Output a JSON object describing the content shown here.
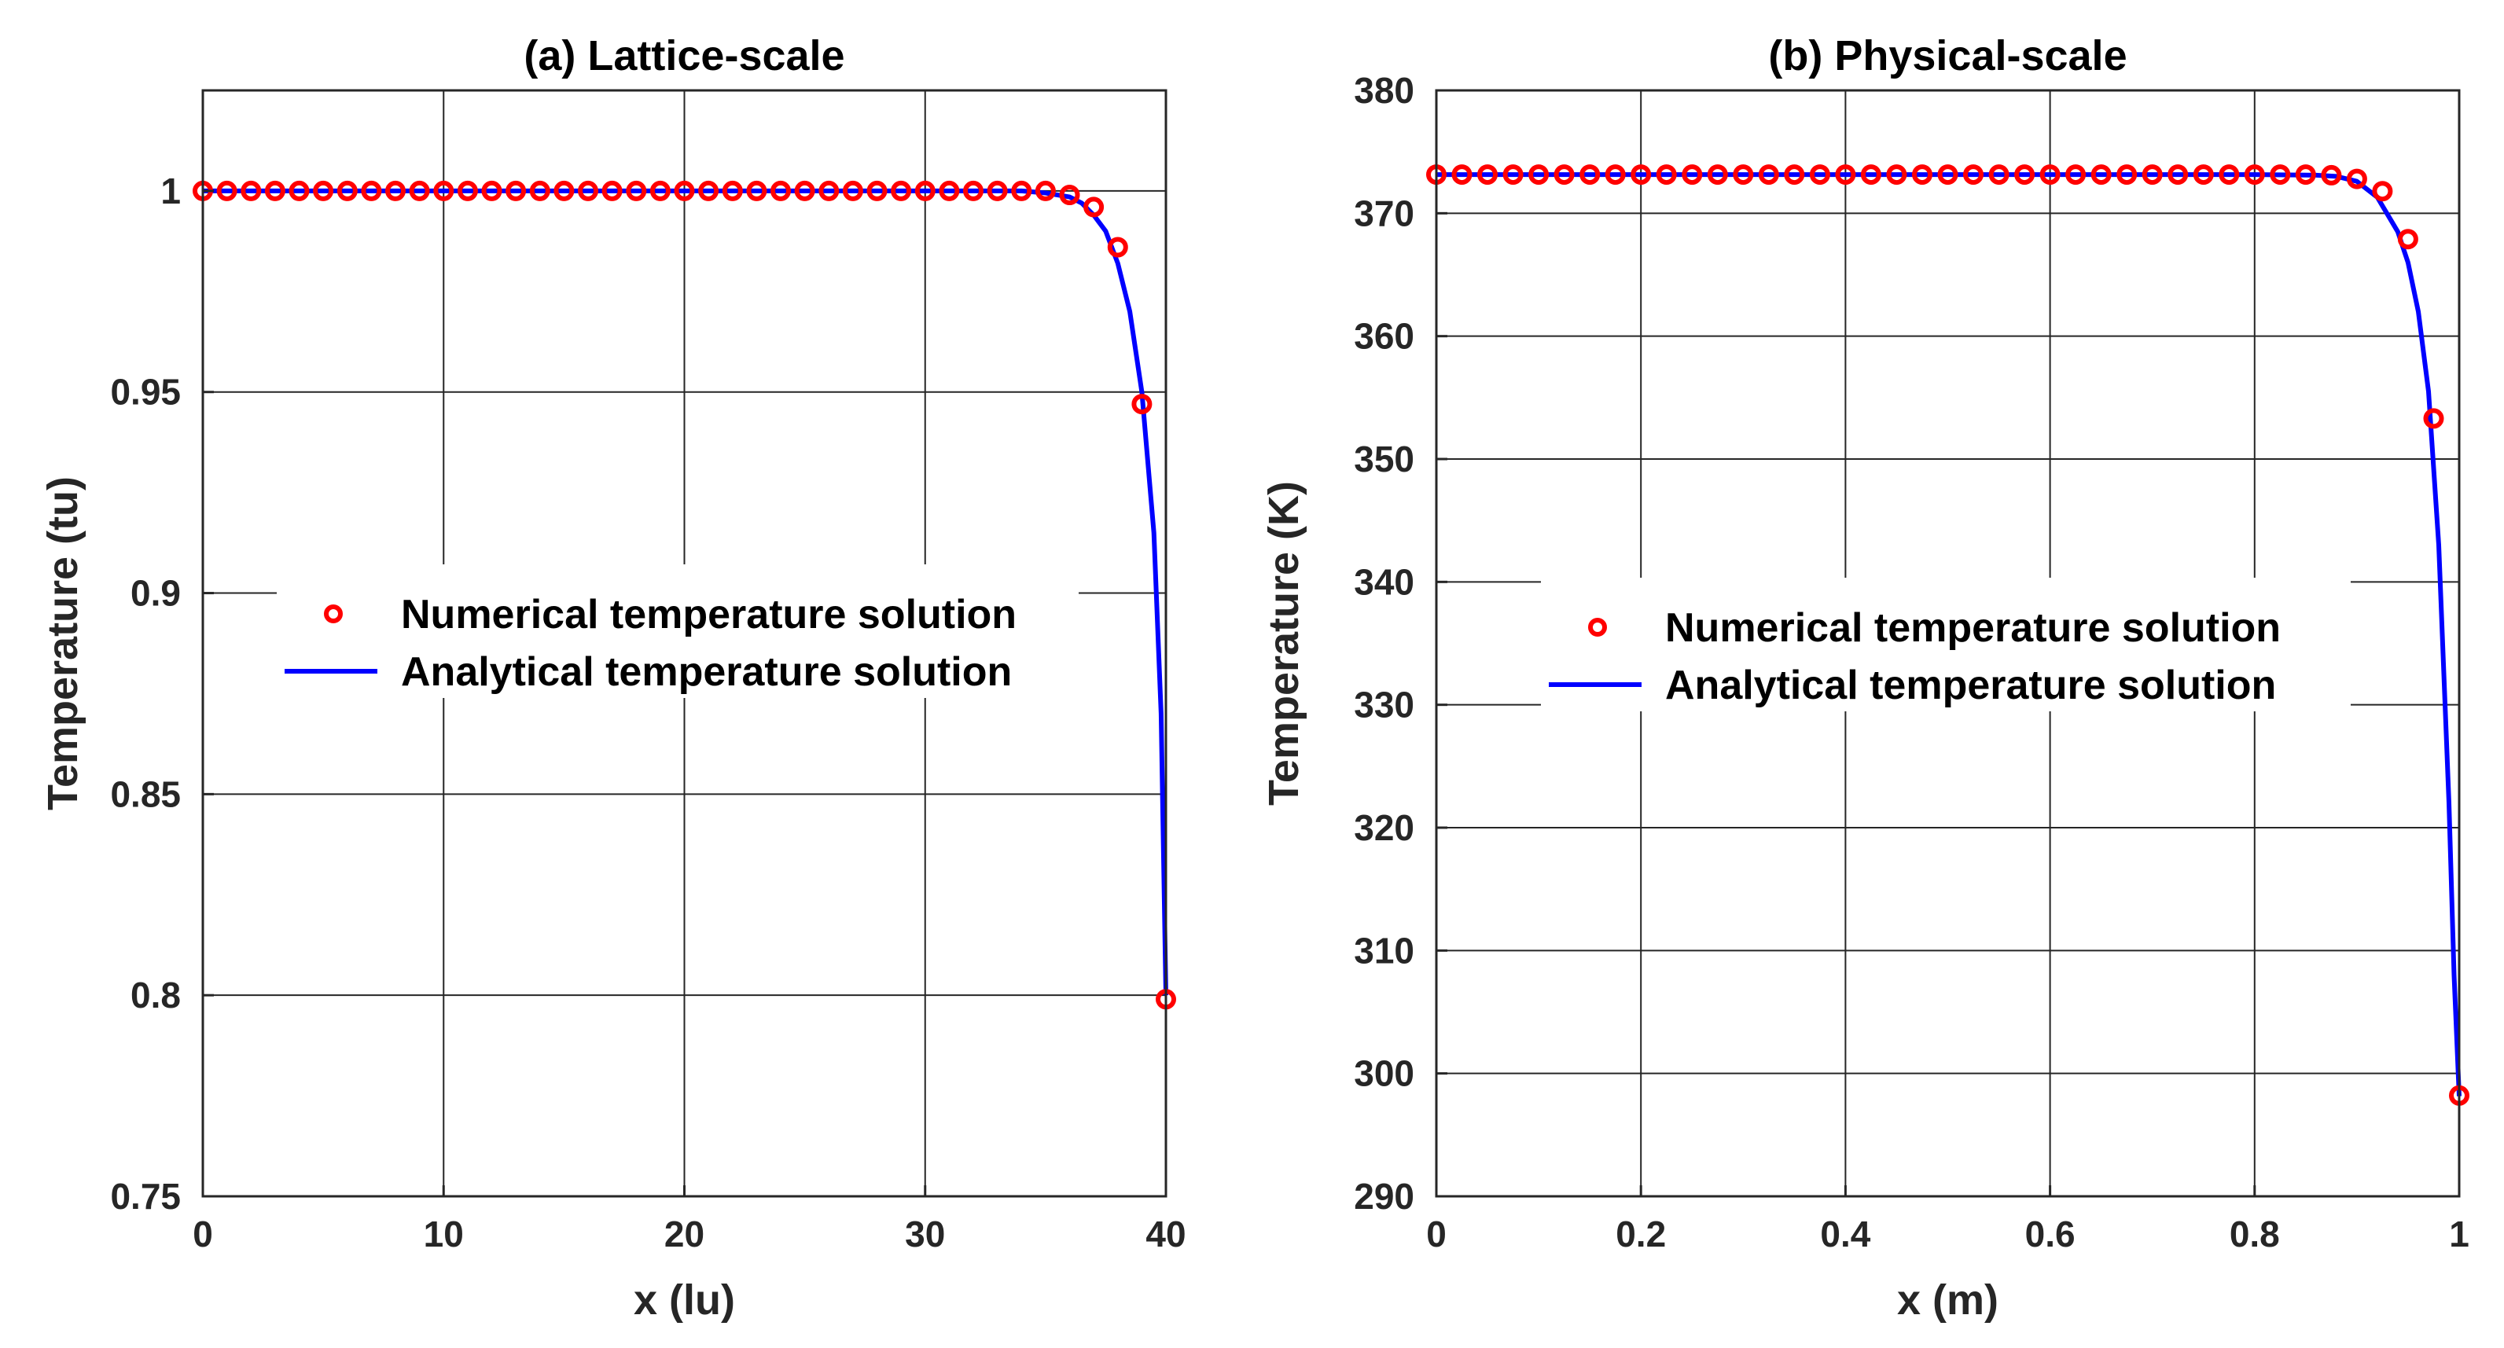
{
  "chart_data": [
    {
      "type": "line",
      "title": "(a) Lattice-scale",
      "xlabel": "x (lu)",
      "ylabel": "Temperature (tu)",
      "xlim": [
        0,
        40
      ],
      "ylim": [
        0.75,
        1.025
      ],
      "xticks": [
        0,
        10,
        20,
        30,
        40
      ],
      "xtick_labels": [
        "0",
        "10",
        "20",
        "30",
        "40"
      ],
      "yticks": [
        0.75,
        0.8,
        0.85,
        0.9,
        0.95,
        1.0
      ],
      "ytick_labels": [
        "0.75",
        "0.8",
        "0.85",
        "0.9",
        "0.95",
        "1"
      ],
      "grid": true,
      "legend": {
        "entries": [
          "Numerical temperature solution",
          "Analytical temperature solution"
        ],
        "location": "center-right"
      },
      "series": [
        {
          "name": "Numerical temperature solution",
          "marker": "circle",
          "color": "#ff0000",
          "x": [
            0,
            1,
            2,
            3,
            4,
            5,
            6,
            7,
            8,
            9,
            10,
            11,
            12,
            13,
            14,
            15,
            16,
            17,
            18,
            19,
            20,
            21,
            22,
            23,
            24,
            25,
            26,
            27,
            28,
            29,
            30,
            31,
            32,
            33,
            34,
            35,
            36,
            37,
            38,
            39,
            40
          ],
          "y": [
            1,
            1,
            1,
            1,
            1,
            1,
            1,
            1,
            1,
            1,
            1,
            1,
            1,
            1,
            1,
            1,
            1,
            1,
            1,
            1,
            1,
            1,
            1,
            1,
            1,
            1,
            1,
            1,
            1,
            1,
            1,
            1,
            1,
            1,
            1,
            1,
            0.999,
            0.996,
            0.986,
            0.947,
            0.799
          ]
        },
        {
          "name": "Analytical temperature solution",
          "line": "solid",
          "color": "#0000ff",
          "x": [
            0,
            30,
            34,
            35,
            36,
            36.5,
            37,
            37.5,
            38,
            38.5,
            39,
            39.5,
            39.8,
            40
          ],
          "y": [
            1,
            1,
            1,
            0.9995,
            0.9985,
            0.997,
            0.994,
            0.99,
            0.982,
            0.97,
            0.95,
            0.915,
            0.87,
            0.8
          ]
        }
      ]
    },
    {
      "type": "line",
      "title": "(b) Physical-scale",
      "xlabel": "x (m)",
      "ylabel": "Temperature (K)",
      "xlim": [
        0,
        1
      ],
      "ylim": [
        290,
        380
      ],
      "xticks": [
        0,
        0.2,
        0.4,
        0.6,
        0.8,
        1
      ],
      "xtick_labels": [
        "0",
        "0.2",
        "0.4",
        "0.6",
        "0.8",
        "1"
      ],
      "yticks": [
        290,
        300,
        310,
        320,
        330,
        340,
        350,
        360,
        370,
        380
      ],
      "ytick_labels": [
        "290",
        "300",
        "310",
        "320",
        "330",
        "340",
        "350",
        "360",
        "370",
        "380"
      ],
      "grid": true,
      "legend": {
        "entries": [
          "Numerical temperature solution",
          "Analytical temperature solution"
        ],
        "location": "center-right"
      },
      "series": [
        {
          "name": "Numerical temperature solution",
          "marker": "circle",
          "color": "#ff0000",
          "x": [
            0,
            0.025,
            0.05,
            0.075,
            0.1,
            0.125,
            0.15,
            0.175,
            0.2,
            0.225,
            0.25,
            0.275,
            0.3,
            0.325,
            0.35,
            0.375,
            0.4,
            0.425,
            0.45,
            0.475,
            0.5,
            0.525,
            0.55,
            0.575,
            0.6,
            0.625,
            0.65,
            0.675,
            0.7,
            0.725,
            0.75,
            0.775,
            0.8,
            0.825,
            0.85,
            0.875,
            0.9,
            0.925,
            0.95,
            0.975,
            1
          ],
          "y": [
            373.15,
            373.15,
            373.15,
            373.15,
            373.15,
            373.15,
            373.15,
            373.15,
            373.15,
            373.15,
            373.15,
            373.15,
            373.15,
            373.15,
            373.15,
            373.15,
            373.15,
            373.15,
            373.15,
            373.15,
            373.15,
            373.15,
            373.15,
            373.15,
            373.15,
            373.15,
            373.15,
            373.15,
            373.15,
            373.15,
            373.15,
            373.15,
            373.15,
            373.15,
            373.15,
            373.1,
            372.8,
            371.8,
            367.9,
            353.3,
            298.2
          ]
        },
        {
          "name": "Analytical temperature solution",
          "line": "solid",
          "color": "#0000ff",
          "x": [
            0,
            0.8,
            0.86,
            0.88,
            0.9,
            0.92,
            0.94,
            0.95,
            0.96,
            0.97,
            0.98,
            0.99,
            0.995,
            1
          ],
          "y": [
            373.15,
            373.15,
            373.1,
            373.0,
            372.6,
            371.3,
            368.5,
            366.0,
            362.0,
            355.5,
            343.0,
            322.0,
            308.0,
            298.15
          ]
        }
      ]
    }
  ]
}
